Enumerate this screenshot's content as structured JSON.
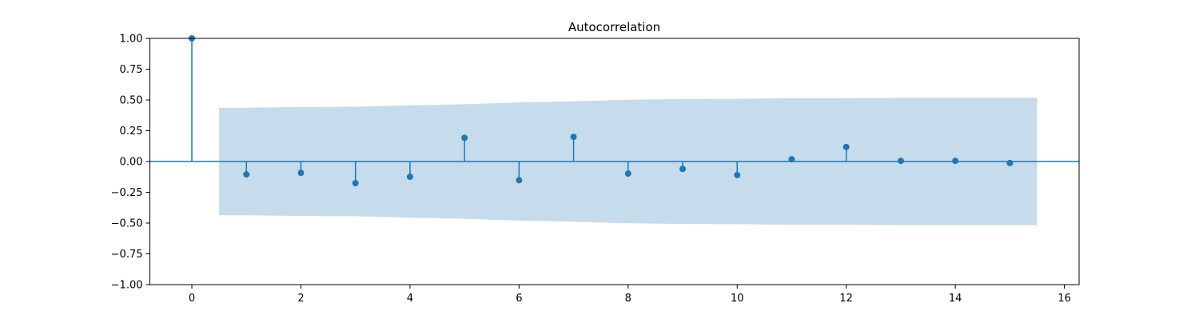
{
  "chart_data": {
    "type": "stem",
    "title": "Autocorrelation",
    "xlabel": "",
    "ylabel": "",
    "xlim": [
      -0.77,
      16.27
    ],
    "ylim": [
      -1.0,
      1.0
    ],
    "xticks": [
      0,
      2,
      4,
      6,
      8,
      10,
      12,
      14,
      16
    ],
    "yticks": [
      1.0,
      0.75,
      0.5,
      0.25,
      0.0,
      -0.25,
      -0.5,
      -0.75,
      -1.0
    ],
    "xtick_labels": [
      "0",
      "2",
      "4",
      "6",
      "8",
      "10",
      "12",
      "14",
      "16"
    ],
    "ytick_labels": [
      "1.00",
      "0.75",
      "0.50",
      "0.25",
      "0.00",
      "−0.25",
      "−0.50",
      "−0.75",
      "−1.00"
    ],
    "grid": false,
    "legend": "none",
    "colors": {
      "stem": "#1f77b4",
      "confidence_band": "#c6dbec"
    },
    "series": [
      {
        "lags": [
          0,
          1,
          2,
          3,
          4,
          5,
          6,
          7,
          8,
          9,
          10,
          11,
          12,
          13,
          14,
          15
        ],
        "values": [
          1.0,
          -0.105,
          -0.092,
          -0.176,
          -0.124,
          0.192,
          -0.152,
          0.2,
          -0.098,
          -0.06,
          -0.11,
          0.018,
          0.118,
          0.005,
          0.005,
          -0.012
        ]
      }
    ],
    "confidence_band": {
      "x": [
        0.5,
        1,
        2,
        3,
        4,
        5,
        6,
        7,
        8,
        9,
        10,
        11,
        12,
        13,
        14,
        15,
        15.5
      ],
      "upper": [
        0.437,
        0.437,
        0.442,
        0.445,
        0.456,
        0.465,
        0.48,
        0.489,
        0.502,
        0.507,
        0.509,
        0.514,
        0.514,
        0.517,
        0.517,
        0.517,
        0.517
      ],
      "lower": [
        -0.437,
        -0.437,
        -0.442,
        -0.445,
        -0.456,
        -0.465,
        -0.48,
        -0.489,
        -0.502,
        -0.507,
        -0.509,
        -0.514,
        -0.514,
        -0.517,
        -0.517,
        -0.517,
        -0.517
      ]
    }
  }
}
